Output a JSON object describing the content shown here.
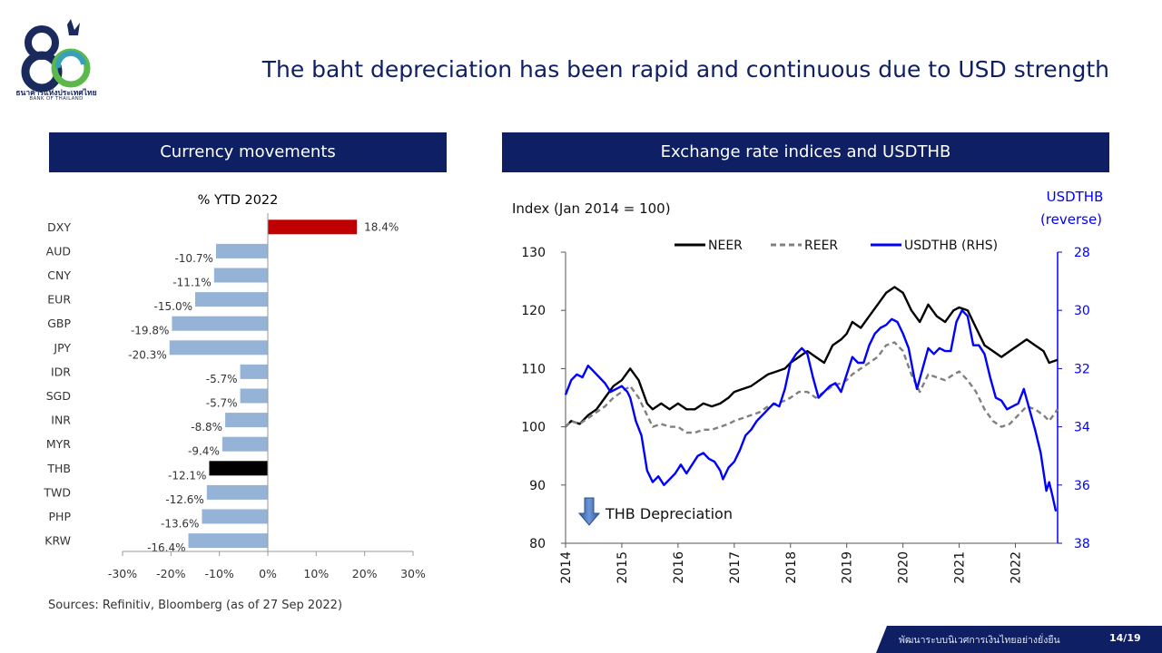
{
  "logo": {
    "numeral": "80",
    "thai_name": "ธนาคารแห่งประเทศไทย",
    "english_name": "BANK OF THAILAND",
    "colors": {
      "navy": "#1b2a5c",
      "teal": "#39a0b8",
      "green": "#5bb84a"
    }
  },
  "slide_title": "The baht depreciation has been rapid and continuous due to USD strength",
  "left_panel": {
    "header": "Currency movements"
  },
  "right_panel": {
    "header": "Exchange rate indices and USDTHB"
  },
  "sources": "Sources: Refinitiv, Bloomberg (as of 27 Sep 2022)",
  "footer": {
    "text": "พัฒนาระบบนิเวศการเงินไทยอย่างยั่งยืน",
    "page": "14/19",
    "color": "#0e1f63"
  },
  "colors": {
    "header_bg": "#0e1f63",
    "bar_default": "#95b3d7",
    "bar_dxy": "#c00000",
    "bar_thb": "#000000",
    "neer": "#000000",
    "reer": "#808080",
    "usdthb": "#0000ff"
  },
  "chart_data": [
    {
      "type": "bar",
      "orientation": "horizontal",
      "title": "% YTD 2022",
      "categories": [
        "DXY",
        "AUD",
        "CNY",
        "EUR",
        "GBP",
        "JPY",
        "IDR",
        "SGD",
        "INR",
        "MYR",
        "THB",
        "TWD",
        "PHP",
        "KRW"
      ],
      "values": [
        18.4,
        -10.7,
        -11.1,
        -15.0,
        -19.8,
        -20.3,
        -5.7,
        -5.7,
        -8.8,
        -9.4,
        -12.1,
        -12.6,
        -13.6,
        -16.4
      ],
      "value_labels": [
        "18.4%",
        "-10.7%",
        "-11.1%",
        "-15.0%",
        "-19.8%",
        "-20.3%",
        "-5.7%",
        "-5.7%",
        "-8.8%",
        "-9.4%",
        "-12.1%",
        "-12.6%",
        "-13.6%",
        "-16.4%"
      ],
      "highlight": {
        "DXY": "bar_dxy",
        "THB": "bar_thb"
      },
      "xlim": [
        -30,
        30
      ],
      "xticks": [
        -30,
        -20,
        -10,
        0,
        10,
        20,
        30
      ],
      "xtick_labels": [
        "-30%",
        "-20%",
        "-10%",
        "0%",
        "10%",
        "20%",
        "30%"
      ],
      "grid": false
    },
    {
      "type": "line",
      "ylabel": "Index (Jan 2014 = 100)",
      "y2label_line1": "USDTHB",
      "y2label_line2": "(reverse)",
      "ylim": [
        80,
        130
      ],
      "yticks": [
        80,
        90,
        100,
        110,
        120,
        130
      ],
      "y2lim": [
        28,
        38
      ],
      "y2_reversed": true,
      "y2ticks": [
        28,
        30,
        32,
        34,
        36,
        38
      ],
      "xlim": [
        2014.0,
        2022.75
      ],
      "xticks": [
        2014,
        2015,
        2016,
        2017,
        2018,
        2019,
        2020,
        2021,
        2022
      ],
      "xtick_labels": [
        "2014",
        "2015",
        "2016",
        "2017",
        "2018",
        "2019",
        "2020",
        "2021",
        "2022"
      ],
      "legend_position": "top",
      "annotation": "THB Depreciation",
      "series": [
        {
          "name": "NEER",
          "axis": "left",
          "style": "solid",
          "points": [
            [
              2014.0,
              100
            ],
            [
              2014.1,
              101
            ],
            [
              2014.25,
              100.5
            ],
            [
              2014.4,
              102
            ],
            [
              2014.55,
              103
            ],
            [
              2014.7,
              105
            ],
            [
              2014.85,
              107
            ],
            [
              2015.0,
              108
            ],
            [
              2015.15,
              110
            ],
            [
              2015.3,
              108
            ],
            [
              2015.45,
              104
            ],
            [
              2015.55,
              103
            ],
            [
              2015.7,
              104
            ],
            [
              2015.85,
              103
            ],
            [
              2016.0,
              104
            ],
            [
              2016.15,
              103
            ],
            [
              2016.3,
              103
            ],
            [
              2016.45,
              104
            ],
            [
              2016.6,
              103.5
            ],
            [
              2016.75,
              104
            ],
            [
              2016.9,
              105
            ],
            [
              2017.0,
              106
            ],
            [
              2017.15,
              106.5
            ],
            [
              2017.3,
              107
            ],
            [
              2017.45,
              108
            ],
            [
              2017.6,
              109
            ],
            [
              2017.75,
              109.5
            ],
            [
              2017.9,
              110
            ],
            [
              2018.0,
              111
            ],
            [
              2018.15,
              112
            ],
            [
              2018.3,
              113
            ],
            [
              2018.45,
              112
            ],
            [
              2018.6,
              111
            ],
            [
              2018.75,
              114
            ],
            [
              2018.9,
              115
            ],
            [
              2019.0,
              116
            ],
            [
              2019.1,
              118
            ],
            [
              2019.25,
              117
            ],
            [
              2019.4,
              119
            ],
            [
              2019.55,
              121
            ],
            [
              2019.7,
              123
            ],
            [
              2019.85,
              124
            ],
            [
              2020.0,
              123
            ],
            [
              2020.15,
              120
            ],
            [
              2020.3,
              118
            ],
            [
              2020.45,
              121
            ],
            [
              2020.6,
              119
            ],
            [
              2020.75,
              118
            ],
            [
              2020.9,
              120
            ],
            [
              2021.0,
              120.5
            ],
            [
              2021.15,
              120
            ],
            [
              2021.3,
              117
            ],
            [
              2021.45,
              114
            ],
            [
              2021.6,
              113
            ],
            [
              2021.75,
              112
            ],
            [
              2021.9,
              113
            ],
            [
              2022.05,
              114
            ],
            [
              2022.2,
              115
            ],
            [
              2022.35,
              114
            ],
            [
              2022.5,
              113
            ],
            [
              2022.6,
              111
            ],
            [
              2022.75,
              111.5
            ]
          ]
        },
        {
          "name": "REER",
          "axis": "left",
          "style": "dashed",
          "points": [
            [
              2014.0,
              100
            ],
            [
              2014.1,
              101
            ],
            [
              2014.25,
              100.5
            ],
            [
              2014.4,
              101.5
            ],
            [
              2014.55,
              102.5
            ],
            [
              2014.7,
              103.5
            ],
            [
              2014.85,
              105
            ],
            [
              2015.0,
              106
            ],
            [
              2015.15,
              107
            ],
            [
              2015.3,
              105
            ],
            [
              2015.45,
              102
            ],
            [
              2015.55,
              100
            ],
            [
              2015.7,
              100.5
            ],
            [
              2015.85,
              100
            ],
            [
              2016.0,
              100
            ],
            [
              2016.15,
              99
            ],
            [
              2016.3,
              99
            ],
            [
              2016.45,
              99.5
            ],
            [
              2016.6,
              99.5
            ],
            [
              2016.75,
              100
            ],
            [
              2016.9,
              100.5
            ],
            [
              2017.0,
              101
            ],
            [
              2017.15,
              101.5
            ],
            [
              2017.3,
              102
            ],
            [
              2017.45,
              102.5
            ],
            [
              2017.6,
              103.5
            ],
            [
              2017.75,
              104
            ],
            [
              2017.9,
              104.5
            ],
            [
              2018.0,
              105
            ],
            [
              2018.15,
              106
            ],
            [
              2018.3,
              106
            ],
            [
              2018.45,
              105
            ],
            [
              2018.6,
              106
            ],
            [
              2018.75,
              107
            ],
            [
              2018.9,
              107.5
            ],
            [
              2019.0,
              108
            ],
            [
              2019.1,
              109
            ],
            [
              2019.25,
              110
            ],
            [
              2019.4,
              111
            ],
            [
              2019.55,
              112
            ],
            [
              2019.7,
              114
            ],
            [
              2019.85,
              114.5
            ],
            [
              2020.0,
              113
            ],
            [
              2020.15,
              109
            ],
            [
              2020.3,
              106
            ],
            [
              2020.45,
              109
            ],
            [
              2020.6,
              108.5
            ],
            [
              2020.75,
              108
            ],
            [
              2020.9,
              109
            ],
            [
              2021.0,
              109.5
            ],
            [
              2021.15,
              108
            ],
            [
              2021.3,
              106
            ],
            [
              2021.45,
              103
            ],
            [
              2021.6,
              101
            ],
            [
              2021.75,
              100
            ],
            [
              2021.9,
              100.5
            ],
            [
              2022.05,
              102
            ],
            [
              2022.2,
              103.5
            ],
            [
              2022.35,
              103
            ],
            [
              2022.5,
              102
            ],
            [
              2022.6,
              101
            ],
            [
              2022.75,
              103
            ]
          ]
        },
        {
          "name": "USDTHB (RHS)",
          "axis": "right",
          "style": "solid",
          "points": [
            [
              2014.0,
              32.9
            ],
            [
              2014.1,
              32.4
            ],
            [
              2014.2,
              32.2
            ],
            [
              2014.3,
              32.3
            ],
            [
              2014.4,
              31.9
            ],
            [
              2014.5,
              32.1
            ],
            [
              2014.6,
              32.3
            ],
            [
              2014.7,
              32.5
            ],
            [
              2014.8,
              32.8
            ],
            [
              2014.9,
              32.7
            ],
            [
              2015.0,
              32.6
            ],
            [
              2015.1,
              32.8
            ],
            [
              2015.15,
              33.0
            ],
            [
              2015.25,
              33.8
            ],
            [
              2015.35,
              34.3
            ],
            [
              2015.45,
              35.5
            ],
            [
              2015.55,
              35.9
            ],
            [
              2015.65,
              35.7
            ],
            [
              2015.75,
              36.0
            ],
            [
              2015.85,
              35.8
            ],
            [
              2015.95,
              35.6
            ],
            [
              2016.05,
              35.3
            ],
            [
              2016.15,
              35.6
            ],
            [
              2016.25,
              35.3
            ],
            [
              2016.35,
              35.0
            ],
            [
              2016.45,
              34.9
            ],
            [
              2016.55,
              35.1
            ],
            [
              2016.65,
              35.2
            ],
            [
              2016.75,
              35.5
            ],
            [
              2016.8,
              35.8
            ],
            [
              2016.9,
              35.4
            ],
            [
              2017.0,
              35.2
            ],
            [
              2017.1,
              34.8
            ],
            [
              2017.2,
              34.3
            ],
            [
              2017.3,
              34.1
            ],
            [
              2017.4,
              33.8
            ],
            [
              2017.5,
              33.6
            ],
            [
              2017.6,
              33.4
            ],
            [
              2017.7,
              33.2
            ],
            [
              2017.8,
              33.3
            ],
            [
              2017.9,
              32.7
            ],
            [
              2018.0,
              31.8
            ],
            [
              2018.1,
              31.5
            ],
            [
              2018.2,
              31.3
            ],
            [
              2018.3,
              31.5
            ],
            [
              2018.4,
              32.3
            ],
            [
              2018.5,
              33.0
            ],
            [
              2018.6,
              32.8
            ],
            [
              2018.7,
              32.6
            ],
            [
              2018.8,
              32.5
            ],
            [
              2018.9,
              32.8
            ],
            [
              2019.0,
              32.2
            ],
            [
              2019.1,
              31.6
            ],
            [
              2019.2,
              31.8
            ],
            [
              2019.3,
              31.8
            ],
            [
              2019.4,
              31.2
            ],
            [
              2019.5,
              30.8
            ],
            [
              2019.6,
              30.6
            ],
            [
              2019.7,
              30.5
            ],
            [
              2019.8,
              30.3
            ],
            [
              2019.9,
              30.4
            ],
            [
              2020.0,
              30.8
            ],
            [
              2020.1,
              31.3
            ],
            [
              2020.2,
              32.3
            ],
            [
              2020.25,
              32.7
            ],
            [
              2020.35,
              32.0
            ],
            [
              2020.45,
              31.3
            ],
            [
              2020.55,
              31.5
            ],
            [
              2020.65,
              31.3
            ],
            [
              2020.75,
              31.4
            ],
            [
              2020.85,
              31.4
            ],
            [
              2020.95,
              30.4
            ],
            [
              2021.05,
              30.0
            ],
            [
              2021.15,
              30.2
            ],
            [
              2021.25,
              31.2
            ],
            [
              2021.35,
              31.2
            ],
            [
              2021.45,
              31.5
            ],
            [
              2021.55,
              32.3
            ],
            [
              2021.65,
              33.0
            ],
            [
              2021.75,
              33.1
            ],
            [
              2021.85,
              33.4
            ],
            [
              2021.95,
              33.3
            ],
            [
              2022.05,
              33.2
            ],
            [
              2022.15,
              32.7
            ],
            [
              2022.25,
              33.4
            ],
            [
              2022.35,
              34.1
            ],
            [
              2022.45,
              34.9
            ],
            [
              2022.55,
              36.2
            ],
            [
              2022.6,
              35.9
            ],
            [
              2022.65,
              36.3
            ],
            [
              2022.72,
              36.9
            ]
          ]
        }
      ]
    }
  ]
}
